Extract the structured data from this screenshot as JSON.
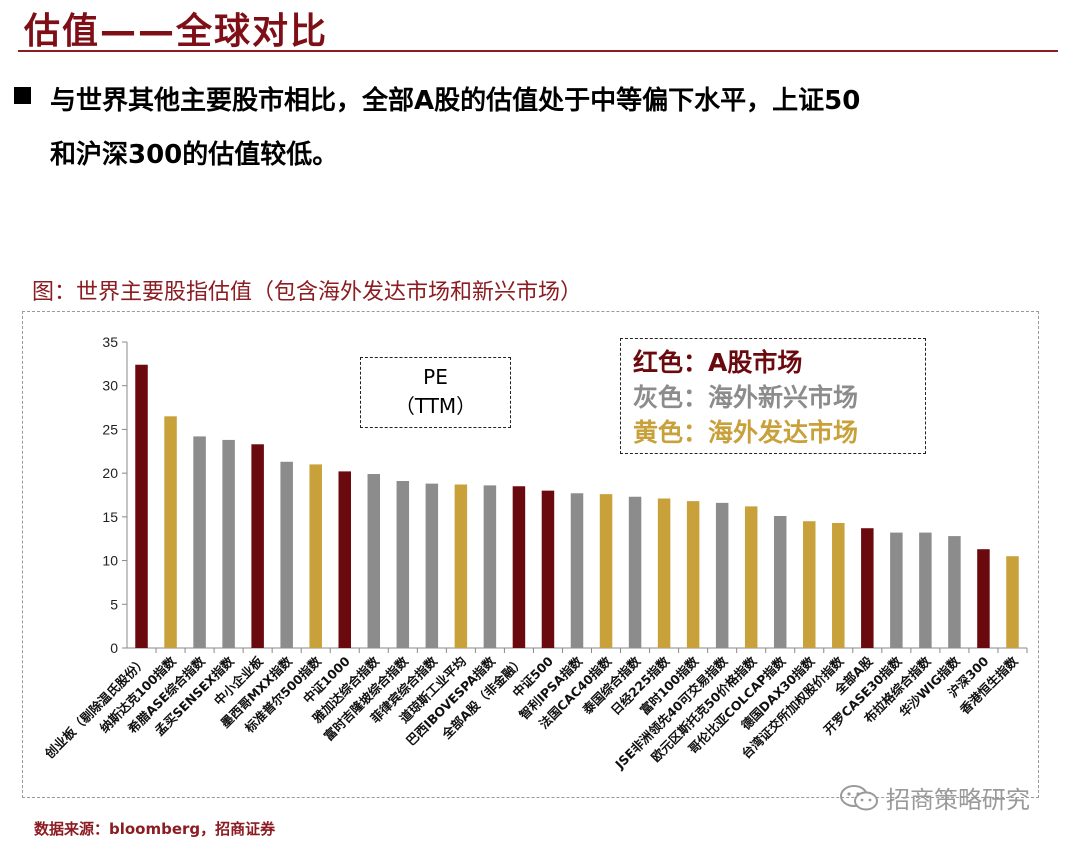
{
  "page": {
    "title": "估值——全球对比",
    "bullet_line1": "与世界其他主要股市相比，全部A股的估值处于中等偏下水平，上证50",
    "bullet_line2": "和沪深300的估值较低。",
    "figure_caption": "图：世界主要股指估值（包含海外发达市场和新兴市场）",
    "source": "数据来源：bloomberg，招商证券",
    "watermark": "招商策略研究",
    "watermark_icon": "wechat-icon"
  },
  "pe_label": {
    "line1": "PE",
    "line2": "（TTM）"
  },
  "legend": [
    {
      "text": "红色：A股市场",
      "color": "#6b0a0e"
    },
    {
      "text": "灰色：海外新兴市场",
      "color": "#8c8c8c"
    },
    {
      "text": "黄色：海外发达市场",
      "color": "#c9a13b"
    }
  ],
  "chart_data": {
    "type": "bar",
    "ylim": [
      0,
      35
    ],
    "yticks": [
      "0",
      "5",
      "10",
      "15",
      "20",
      "25",
      "30",
      "35"
    ],
    "grid": false,
    "colors": {
      "A": "#6b0a0e",
      "E": "#8c8c8c",
      "D": "#c9a13b"
    },
    "categories": [
      "创业板（剔除温氏股份）",
      "纳斯达克100指数",
      "希腊ASE综合指数",
      "孟买SENSEX指数",
      "中小企业板",
      "墨西哥MXX指数",
      "标准普尔500指数",
      "中证1000",
      "雅加达综合指数",
      "富时吉隆坡综合指数",
      "菲律宾综合指数",
      "道琼斯工业平均",
      "巴西IBOVESPA指数",
      "全部A股（非金融）",
      "中证500",
      "智利IPSA指数",
      "法国CAC40指数",
      "泰国综合指数",
      "日经225指数",
      "富时100指数",
      "JSE非洲领先40可交易指数",
      "欧元区斯托克50价格指数",
      "哥伦比亚COLCAP指数",
      "德国DAX30指数",
      "台湾证交所加权股价指数",
      "全部A股",
      "开罗CASE30指数",
      "布拉格综合指数",
      "华沙WIG指数",
      "沪深300",
      "香港恒生指数"
    ],
    "values": [
      32.4,
      26.5,
      24.2,
      23.8,
      23.3,
      21.3,
      21.0,
      20.2,
      19.9,
      19.1,
      18.8,
      18.7,
      18.6,
      18.5,
      18.0,
      17.7,
      17.6,
      17.3,
      17.1,
      16.8,
      16.6,
      16.2,
      15.1,
      14.5,
      14.3,
      13.7,
      13.2,
      13.2,
      12.8,
      11.3,
      10.5
    ],
    "groups": [
      "A",
      "D",
      "E",
      "E",
      "A",
      "E",
      "D",
      "A",
      "E",
      "E",
      "E",
      "D",
      "E",
      "A",
      "A",
      "E",
      "D",
      "E",
      "D",
      "D",
      "E",
      "D",
      "E",
      "D",
      "D",
      "A",
      "E",
      "E",
      "E",
      "A",
      "D"
    ]
  }
}
